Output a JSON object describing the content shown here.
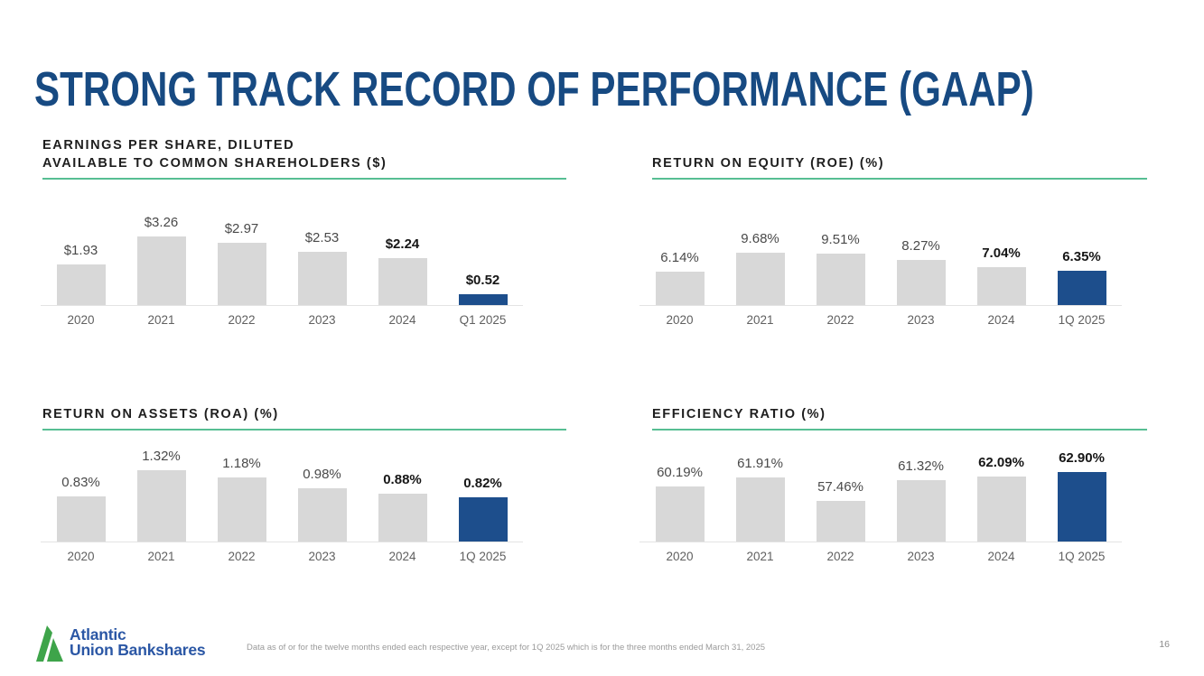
{
  "slide": {
    "title": "STRONG TRACK RECORD OF PERFORMANCE (GAAP)",
    "title_dot": ".",
    "footnote": "Data as of or for the twelve months ended each respective year, except for 1Q 2025 which is for the three months ended March 31, 2025",
    "page_number": "16",
    "logo": {
      "line1": "Atlantic",
      "line2": "Union Bankshares"
    }
  },
  "colors": {
    "title_blue": "#174A82",
    "bar_gray": "#D8D8D8",
    "bar_blue": "#1D4E8C",
    "rule_green": "#57BE93",
    "logo_green": "#3EA44A",
    "logo_blue": "#2B57A5"
  },
  "chart_data": [
    {
      "type": "bar",
      "title_lines": [
        "EARNINGS PER SHARE, DILUTED",
        "AVAILABLE TO COMMON SHAREHOLDERS ($)"
      ],
      "categories": [
        "2020",
        "2021",
        "2022",
        "2023",
        "2024",
        "Q1 2025"
      ],
      "values": [
        1.93,
        3.26,
        2.97,
        2.53,
        2.24,
        0.52
      ],
      "labels": [
        "$1.93",
        "$3.26",
        "$2.97",
        "$2.53",
        "$2.24",
        "$0.52"
      ],
      "ylim": [
        0,
        3.6
      ],
      "highlight_index": 5,
      "bold_label_indexes": [
        4,
        5
      ],
      "grid": false,
      "legend": "none"
    },
    {
      "type": "bar",
      "title_lines": [
        "RETURN ON EQUITY (ROE) (%)"
      ],
      "categories": [
        "2020",
        "2021",
        "2022",
        "2023",
        "2024",
        "1Q 2025"
      ],
      "values": [
        6.14,
        9.68,
        9.51,
        8.27,
        7.04,
        6.35
      ],
      "labels": [
        "6.14%",
        "9.68%",
        "9.51%",
        "8.27%",
        "7.04%",
        "6.35%"
      ],
      "ylim": [
        0,
        14
      ],
      "highlight_index": 5,
      "bold_label_indexes": [
        4,
        5
      ],
      "grid": false,
      "legend": "none"
    },
    {
      "type": "bar",
      "title_lines": [
        "RETURN ON ASSETS (ROA) (%)"
      ],
      "categories": [
        "2020",
        "2021",
        "2022",
        "2023",
        "2024",
        "1Q 2025"
      ],
      "values": [
        0.83,
        1.32,
        1.18,
        0.98,
        0.88,
        0.82
      ],
      "labels": [
        "0.83%",
        "1.32%",
        "1.18%",
        "0.98%",
        "0.88%",
        "0.82%"
      ],
      "ylim": [
        0,
        1.4
      ],
      "highlight_index": 5,
      "bold_label_indexes": [
        4,
        5
      ],
      "grid": false,
      "legend": "none"
    },
    {
      "type": "bar",
      "title_lines": [
        "EFFICIENCY RATIO (%)"
      ],
      "categories": [
        "2020",
        "2021",
        "2022",
        "2023",
        "2024",
        "1Q 2025"
      ],
      "values": [
        60.19,
        61.91,
        57.46,
        61.32,
        62.09,
        62.9
      ],
      "labels": [
        "60.19%",
        "61.91%",
        "57.46%",
        "61.32%",
        "62.09%",
        "62.90%"
      ],
      "ylim": [
        50,
        64
      ],
      "highlight_index": 5,
      "bold_label_indexes": [
        4,
        5
      ],
      "grid": false,
      "legend": "none"
    }
  ]
}
